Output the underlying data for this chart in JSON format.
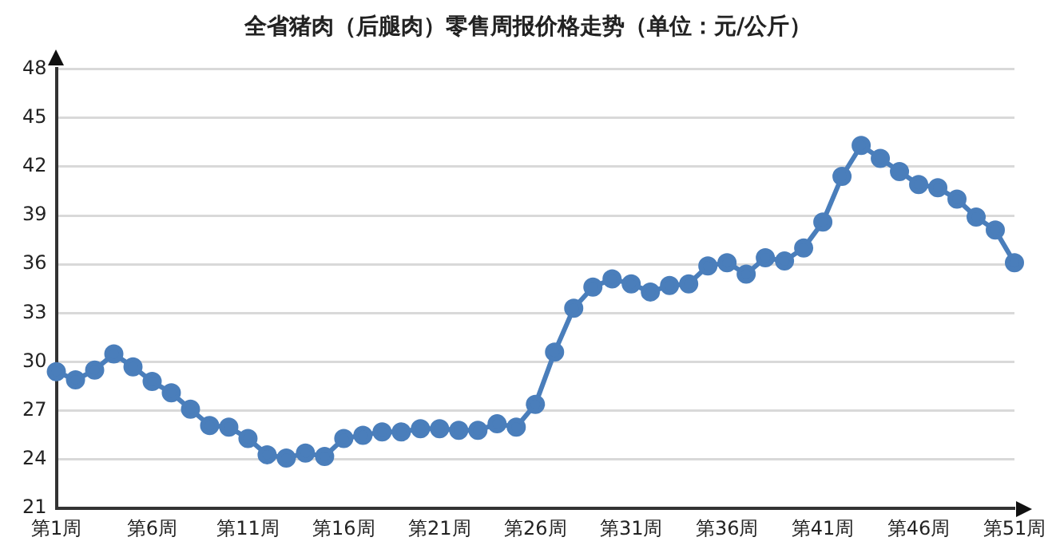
{
  "chart_data": {
    "type": "line",
    "title": "全省猪肉（后腿肉）零售周报价格走势（单位：元/公斤）",
    "categories": [
      "第1周",
      null,
      null,
      null,
      null,
      "第6周",
      null,
      null,
      null,
      null,
      "第11周",
      null,
      null,
      null,
      null,
      "第16周",
      null,
      null,
      null,
      null,
      "第21周",
      null,
      null,
      null,
      null,
      "第26周",
      null,
      null,
      null,
      null,
      "第31周",
      null,
      null,
      null,
      null,
      "第36周",
      null,
      null,
      null,
      null,
      "第41周",
      null,
      null,
      null,
      null,
      "第46周",
      null,
      null,
      null,
      null,
      "第51周"
    ],
    "series": [
      {
        "color": "#4a7ebb",
        "values": [
          29.4,
          28.9,
          29.5,
          30.5,
          29.7,
          28.8,
          28.1,
          27.1,
          26.1,
          26.0,
          25.3,
          24.3,
          24.1,
          24.4,
          24.2,
          25.3,
          25.5,
          25.7,
          25.7,
          25.9,
          25.9,
          25.8,
          25.8,
          26.2,
          26.0,
          27.4,
          30.6,
          33.3,
          34.6,
          35.1,
          34.8,
          34.3,
          34.7,
          34.8,
          35.9,
          36.1,
          35.4,
          36.4,
          36.2,
          37.0,
          38.6,
          41.4,
          43.3,
          42.5,
          41.7,
          40.9,
          40.7,
          40.0,
          38.9,
          38.1,
          36.1
        ]
      }
    ],
    "ylim": [
      21,
      48
    ],
    "yticks": [
      21,
      24,
      27,
      30,
      33,
      36,
      39,
      42,
      45,
      48
    ],
    "grid": "y",
    "legend": false,
    "marker": "circle",
    "line_style": "solid"
  }
}
